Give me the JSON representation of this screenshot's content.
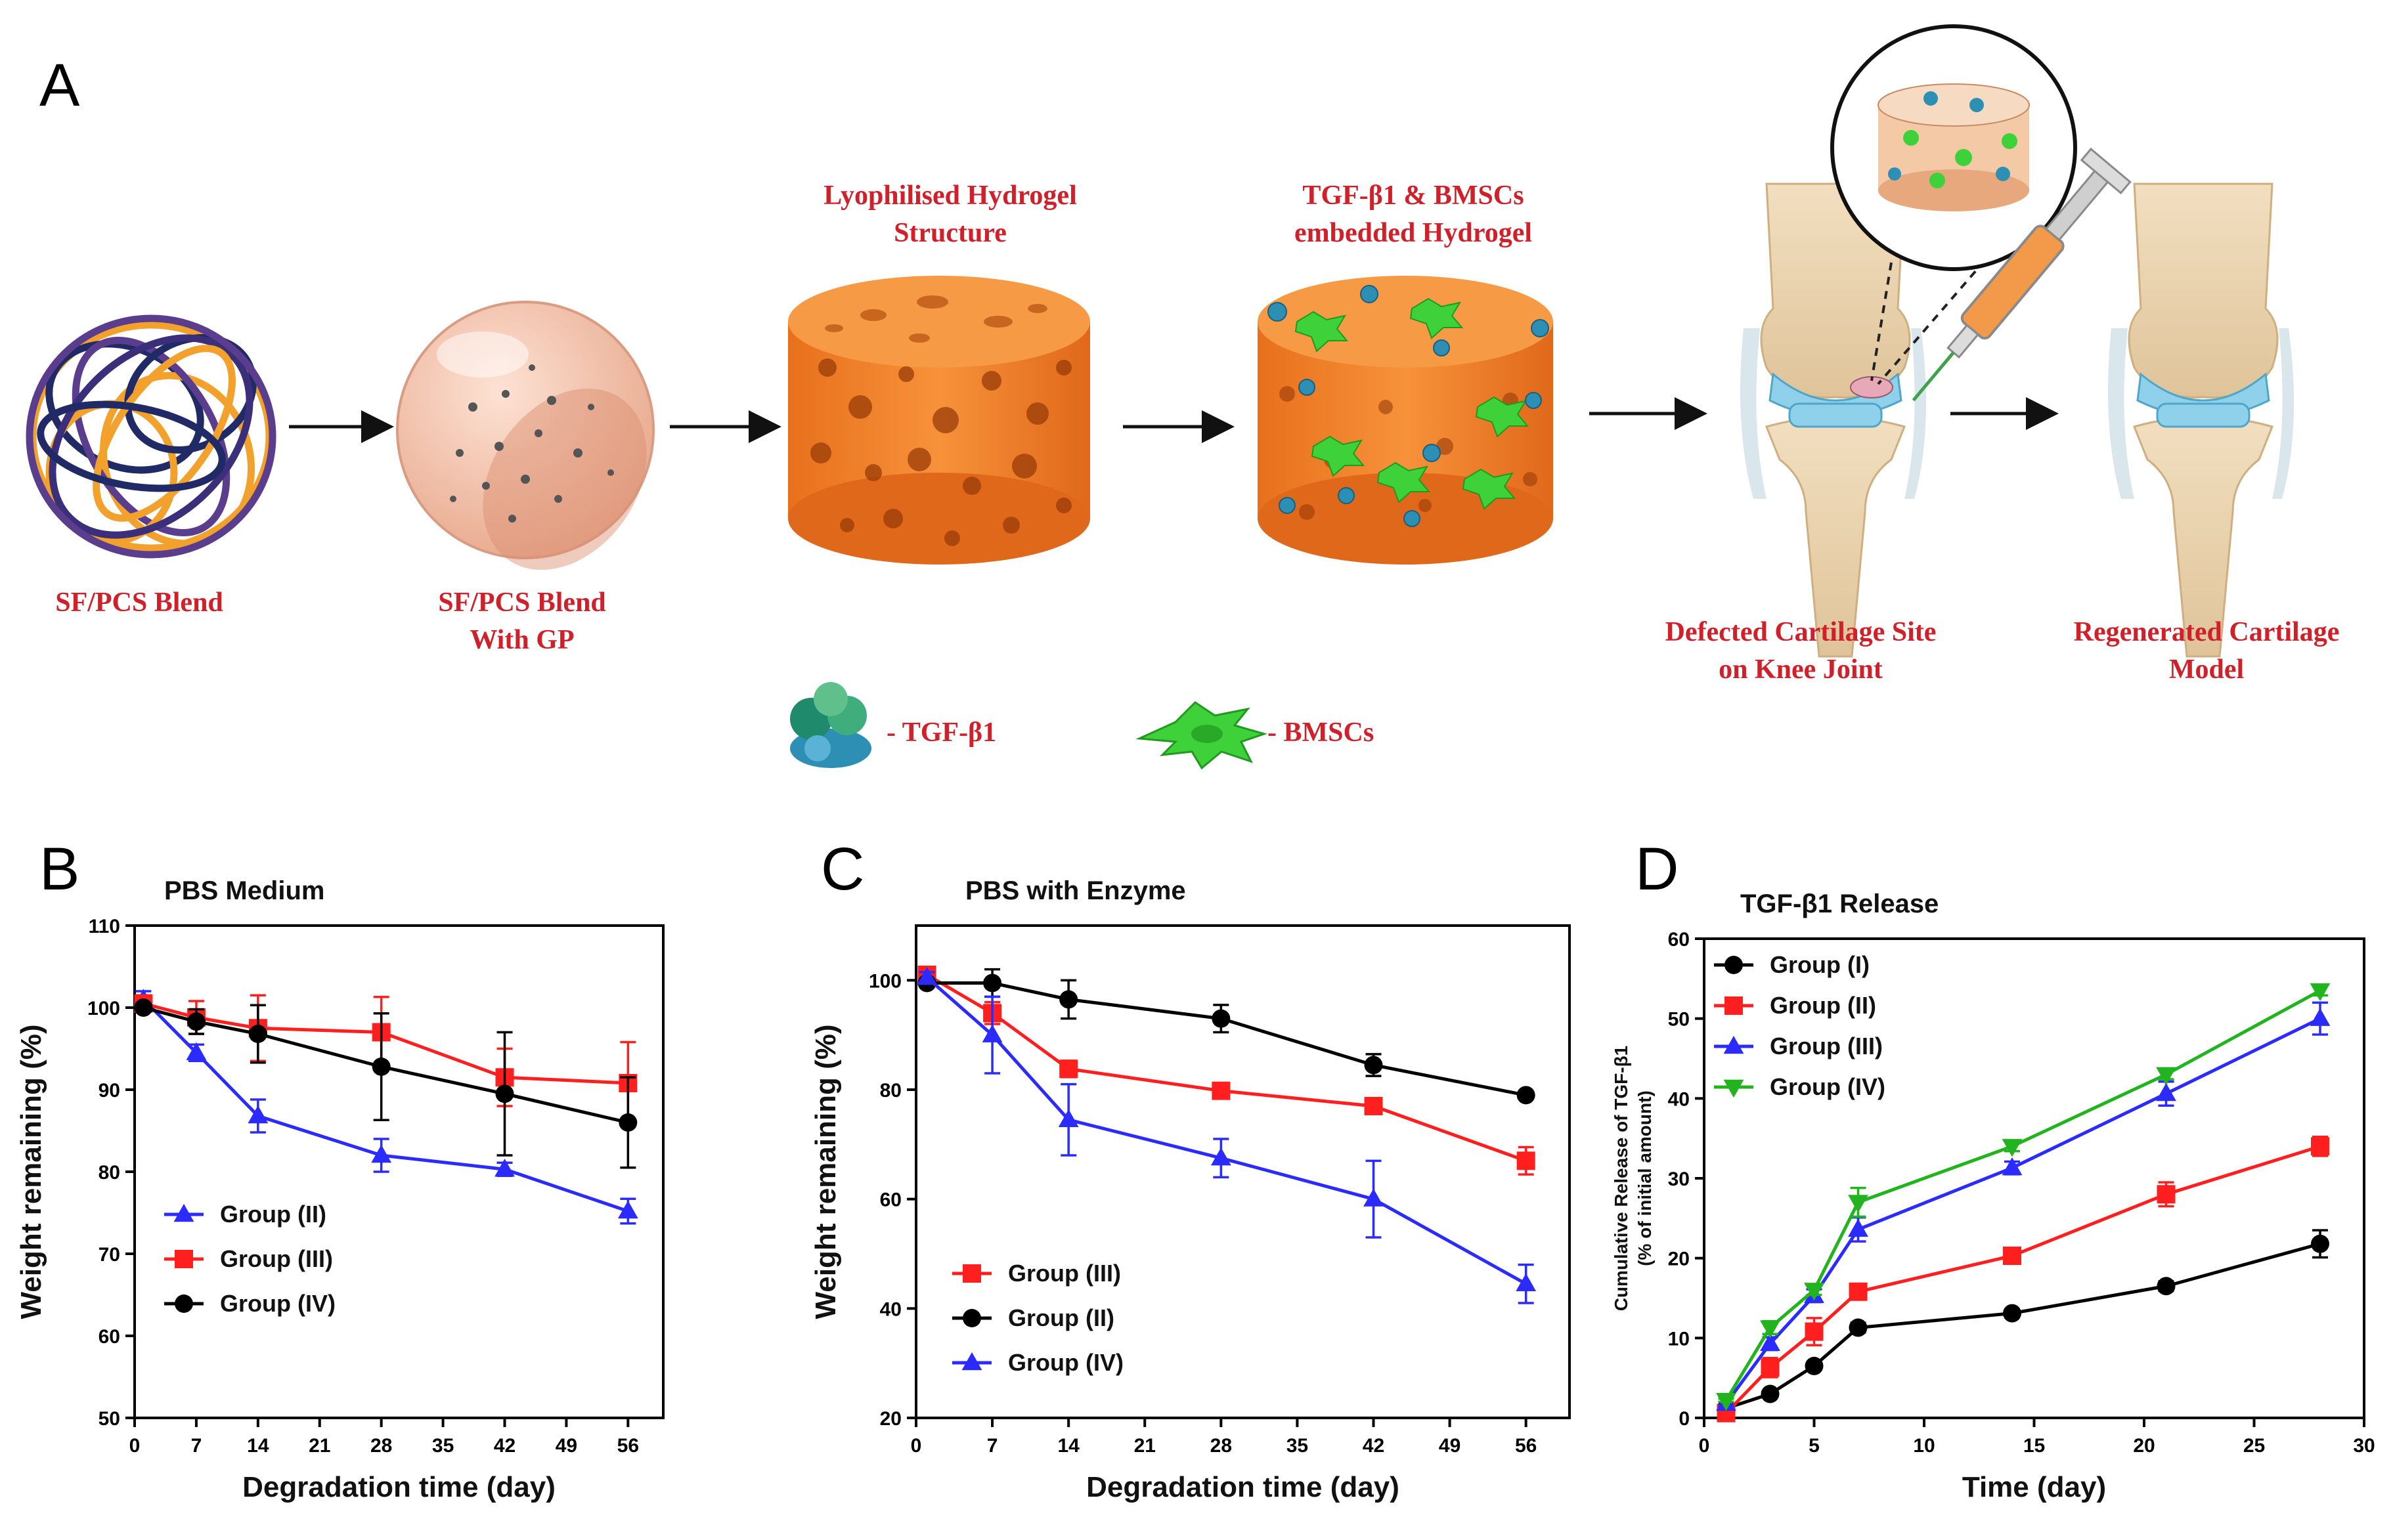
{
  "panels": {
    "a": "A",
    "b": "B",
    "c": "C",
    "d": "D"
  },
  "scheme": {
    "stages": [
      {
        "id": "blend",
        "lines": [
          "SF/PCS Blend"
        ]
      },
      {
        "id": "blend-gp",
        "lines": [
          "SF/PCS Blend",
          "With GP"
        ]
      },
      {
        "id": "lyophilised",
        "lines": [
          "Lyophilised Hydrogel",
          "Structure"
        ]
      },
      {
        "id": "embedded",
        "lines": [
          "TGF-β1 & BMSCs",
          "embedded Hydrogel"
        ]
      },
      {
        "id": "defect",
        "lines": [
          "Defected Cartilage Site",
          "on Knee Joint"
        ]
      },
      {
        "id": "regenerated",
        "lines": [
          "Regenerated Cartilage",
          "Model"
        ]
      }
    ],
    "legend": {
      "tgf": "- TGF-β1",
      "bmsc": "- BMSCs"
    },
    "colors": {
      "label": "#d0202a",
      "hydrogel": "#f28a2e",
      "cell": "#3ed13a",
      "protein": "#2d8fb4",
      "cartilage": "#8fd0ea",
      "bone": "#efd9b4"
    }
  },
  "chart_data": [
    {
      "id": "B",
      "type": "line",
      "title": "PBS Medium",
      "xlabel": "Degradation time (day)",
      "ylabel": "Weight remaining (%)",
      "xlim": [
        0,
        60
      ],
      "ylim": [
        50,
        110
      ],
      "xticks": [
        0,
        7,
        14,
        21,
        28,
        35,
        42,
        49,
        56
      ],
      "yticks": [
        50,
        60,
        70,
        80,
        90,
        100,
        110
      ],
      "legend_position": "bottom-left",
      "series": [
        {
          "name": "Group (II)",
          "color": "#2b2bff",
          "marker": "triangle-up",
          "x": [
            1,
            7,
            14,
            28,
            42,
            56
          ],
          "y": [
            101,
            94.5,
            86.8,
            82,
            80.3,
            75.2
          ],
          "err": [
            1,
            1,
            2,
            2,
            0.8,
            1.5
          ]
        },
        {
          "name": "Group (III)",
          "color": "#ff1f1f",
          "marker": "square",
          "x": [
            1,
            7,
            14,
            28,
            42,
            56
          ],
          "y": [
            100.5,
            98.8,
            97.5,
            97,
            91.5,
            90.8
          ],
          "err": [
            1,
            2,
            4,
            4.3,
            3.5,
            5
          ]
        },
        {
          "name": "Group (IV)",
          "color": "#000000",
          "marker": "circle",
          "x": [
            1,
            7,
            14,
            28,
            42,
            56
          ],
          "y": [
            100,
            98.3,
            96.8,
            92.8,
            89.5,
            86
          ],
          "err": [
            0.5,
            1.5,
            3.5,
            6.5,
            7.5,
            5.5
          ]
        }
      ]
    },
    {
      "id": "C",
      "type": "line",
      "title": "PBS with Enzyme",
      "xlabel": "Degradation time (day)",
      "ylabel": "Weight remaining (%)",
      "xlim": [
        0,
        60
      ],
      "ylim": [
        20,
        110
      ],
      "xticks": [
        0,
        7,
        14,
        21,
        28,
        35,
        42,
        49,
        56
      ],
      "yticks": [
        20,
        40,
        60,
        80,
        100
      ],
      "legend_position": "bottom-left",
      "series": [
        {
          "name": "Group (III)",
          "color": "#ff1f1f",
          "marker": "square",
          "x": [
            1,
            7,
            14,
            28,
            42,
            56
          ],
          "y": [
            101,
            94,
            83.8,
            79.8,
            77,
            67
          ],
          "err": [
            0.8,
            2,
            1.5,
            1,
            1,
            2.5
          ]
        },
        {
          "name": "Group (II)",
          "color": "#000000",
          "marker": "circle",
          "x": [
            1,
            7,
            14,
            28,
            42,
            56
          ],
          "y": [
            99.5,
            99.5,
            96.5,
            93,
            84.5,
            79
          ],
          "err": [
            0.5,
            2.5,
            3.5,
            2.5,
            2,
            0.5
          ]
        },
        {
          "name": "Group (IV)",
          "color": "#2b2bff",
          "marker": "triangle-up",
          "x": [
            1,
            7,
            14,
            28,
            42,
            56
          ],
          "y": [
            100.5,
            90,
            74.5,
            67.5,
            60,
            44.5
          ],
          "err": [
            1,
            7,
            6.5,
            3.5,
            7,
            3.5
          ]
        }
      ]
    },
    {
      "id": "D",
      "type": "line",
      "title": "TGF-β1 Release",
      "xlabel": "Time (day)",
      "ylabel": "Cumulative Release of TGF-β1",
      "ylabel2": "(% of initial amount)",
      "xlim": [
        0,
        30
      ],
      "ylim": [
        0,
        60
      ],
      "xticks": [
        0,
        5,
        10,
        15,
        20,
        25,
        30
      ],
      "yticks": [
        0,
        10,
        20,
        30,
        40,
        50,
        60
      ],
      "legend_position": "top-left",
      "series": [
        {
          "name": "Group (I)",
          "color": "#000000",
          "marker": "circle",
          "x": [
            1,
            3,
            5,
            7,
            14,
            21,
            28
          ],
          "y": [
            1.2,
            3,
            6.5,
            11.3,
            13.1,
            16.5,
            21.8
          ],
          "err": [
            0.2,
            0.3,
            0.5,
            0.6,
            0.5,
            0.6,
            1.7
          ]
        },
        {
          "name": "Group (II)",
          "color": "#ff1f1f",
          "marker": "square",
          "x": [
            1,
            3,
            5,
            7,
            14,
            21,
            28
          ],
          "y": [
            0.6,
            6.3,
            10.8,
            15.8,
            20.3,
            28,
            34
          ],
          "err": [
            0.2,
            1.2,
            1.7,
            0.8,
            0.6,
            1.5,
            1.2
          ]
        },
        {
          "name": "Group (III)",
          "color": "#2b2bff",
          "marker": "triangle-up",
          "x": [
            1,
            3,
            5,
            7,
            14,
            21,
            28
          ],
          "y": [
            1.8,
            9.3,
            15.3,
            23.6,
            31.3,
            40.6,
            50
          ],
          "err": [
            0.2,
            0.8,
            0.8,
            1.5,
            0.8,
            1.5,
            2
          ]
        },
        {
          "name": "Group (IV)",
          "color": "#22b41f",
          "marker": "triangle-down",
          "x": [
            1,
            3,
            5,
            7,
            14,
            21,
            28
          ],
          "y": [
            2.2,
            11.3,
            16,
            27,
            34,
            43,
            53.5
          ],
          "err": [
            0.2,
            0.8,
            0.6,
            1.8,
            0.6,
            0.6,
            0.6
          ]
        }
      ]
    }
  ]
}
